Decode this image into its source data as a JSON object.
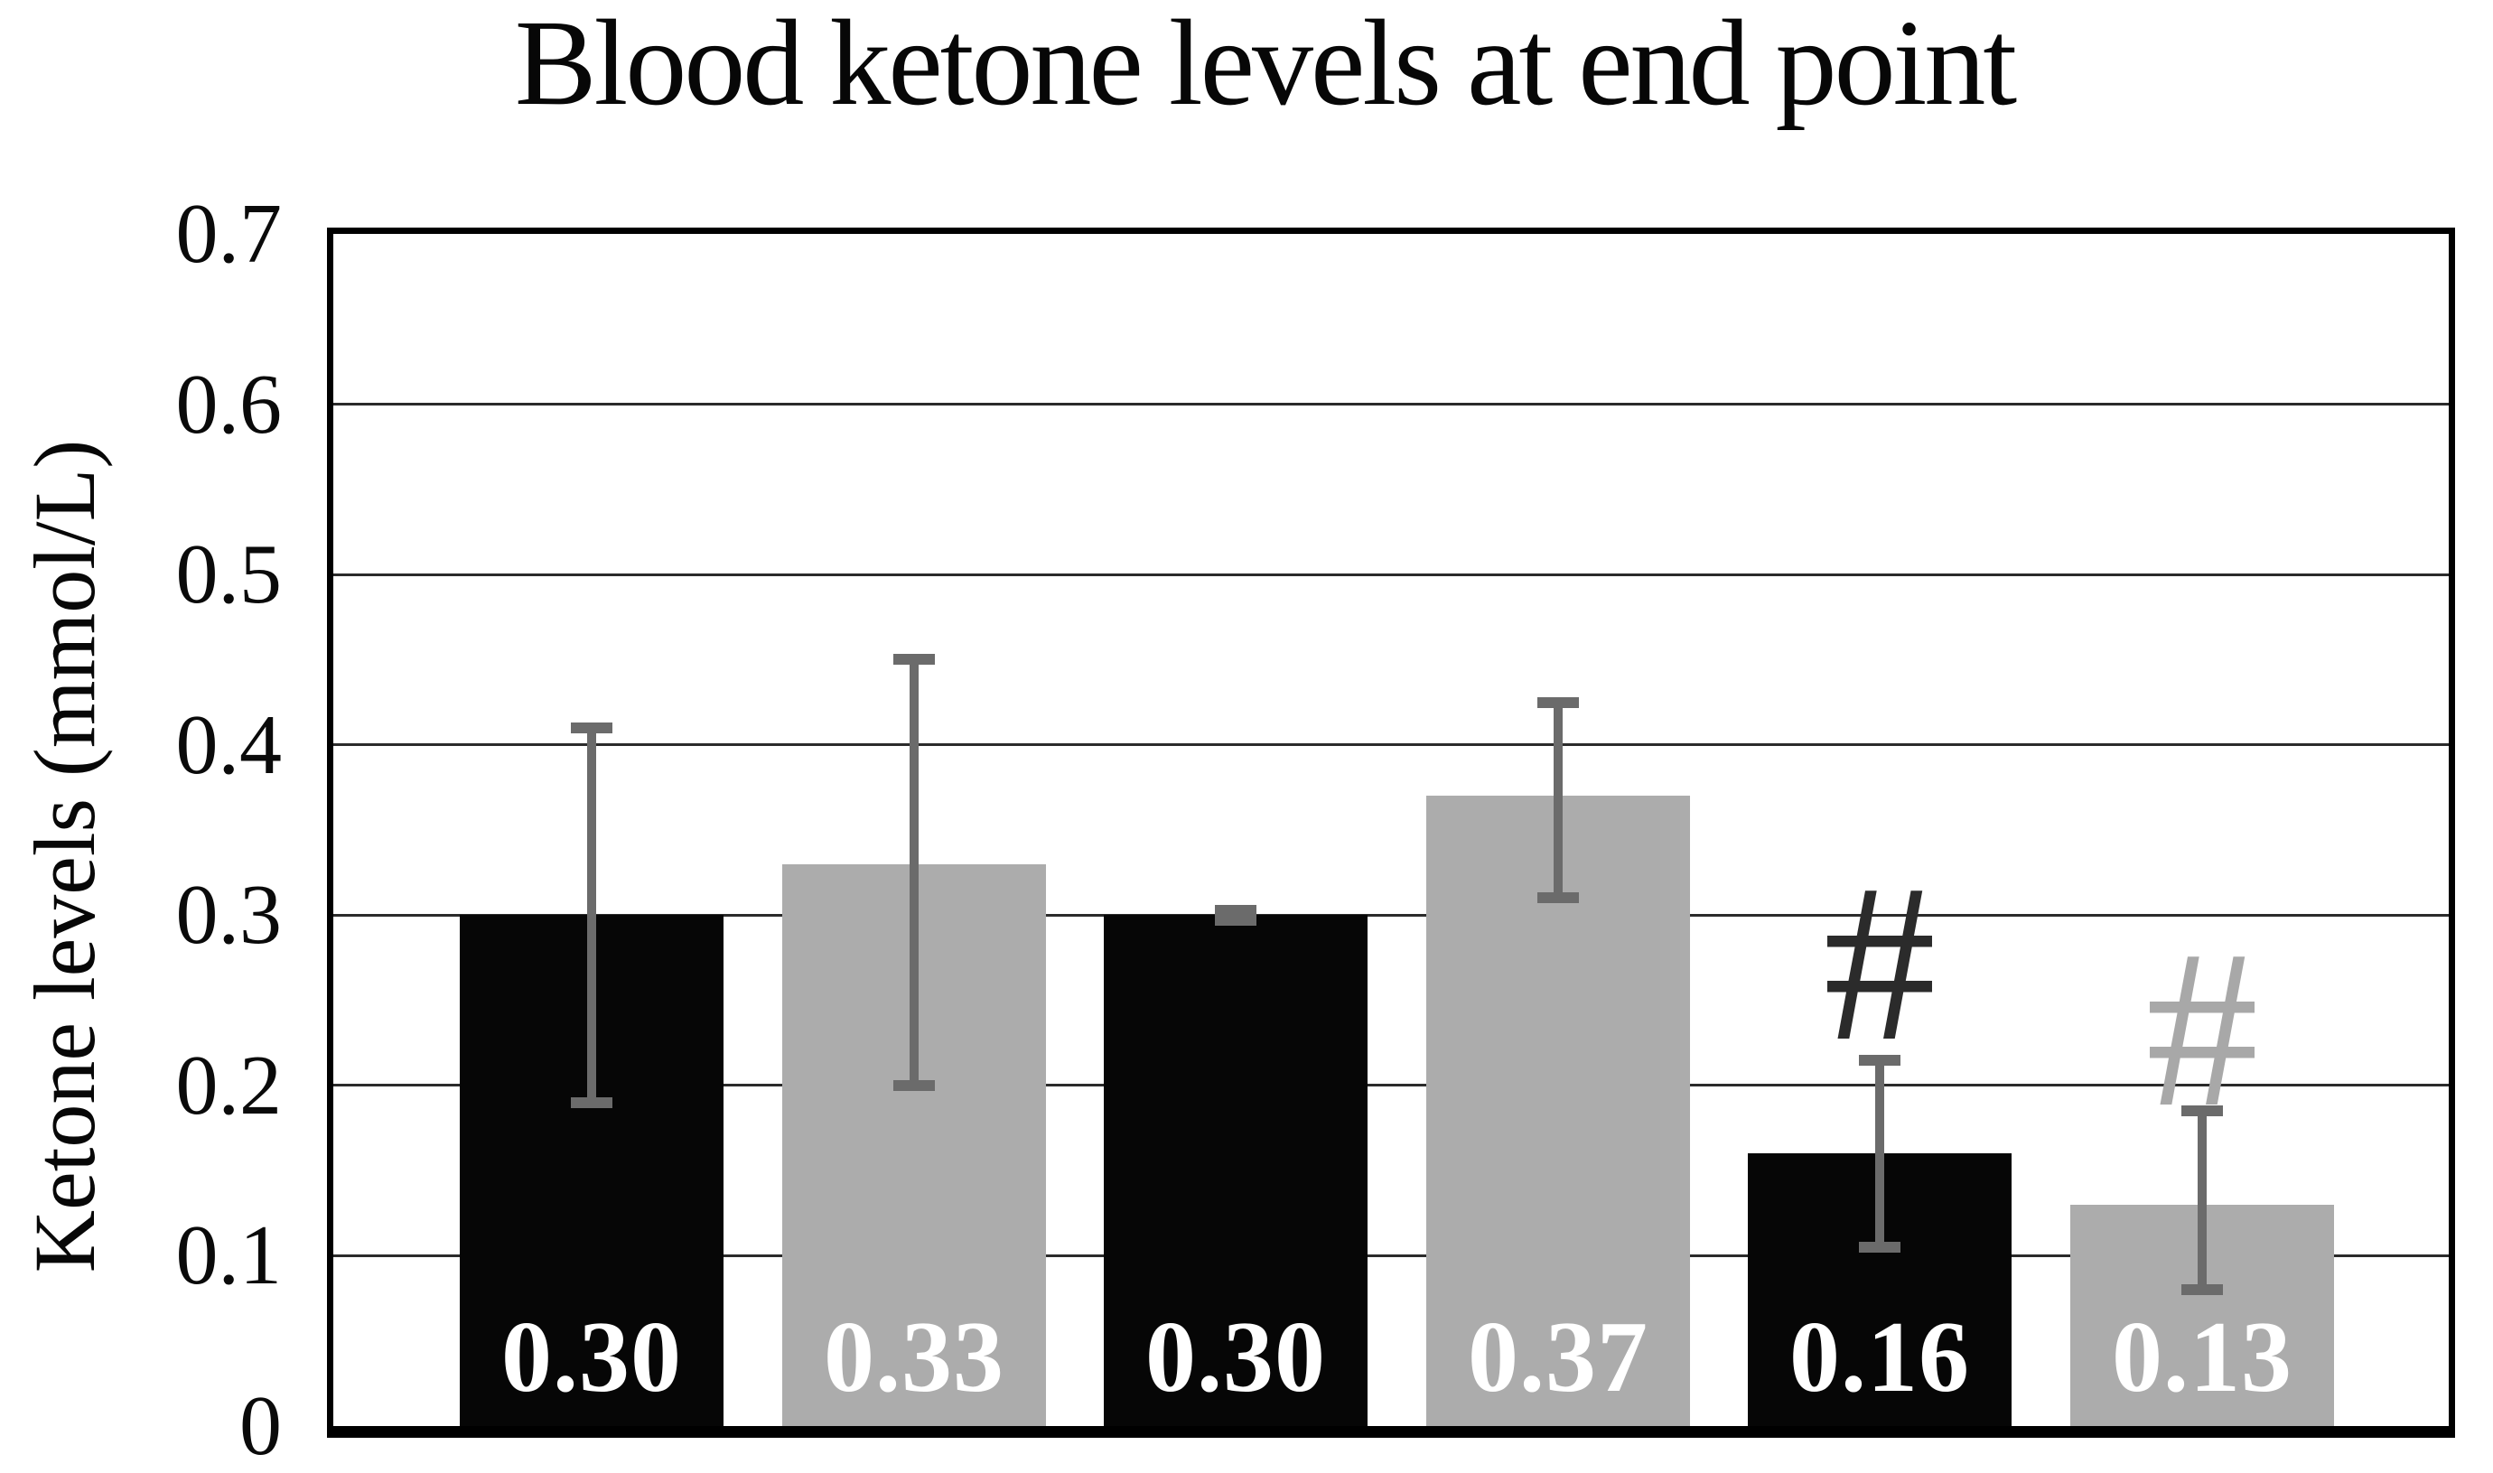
{
  "chart_data": {
    "type": "bar",
    "title": "Blood ketone levels at end point",
    "xlabel": "",
    "ylabel": "Ketone levels (mmol/L)",
    "ylim": [
      0,
      0.7
    ],
    "ytick_step": 0.1,
    "yticks": [
      "0.7",
      "0.6",
      "0.5",
      "0.4",
      "0.3",
      "0.2",
      "0.1",
      "0"
    ],
    "ytick_values": [
      0.7,
      0.6,
      0.5,
      0.4,
      0.3,
      0.2,
      0.1,
      0
    ],
    "grid": true,
    "legend": false,
    "x_tick_labels_visible": false,
    "bars": [
      {
        "label": "0.30",
        "value": 0.3,
        "fill": "black",
        "err_high": 0.41,
        "err_low": 0.19,
        "annotation": ""
      },
      {
        "label": "0.33",
        "value": 0.33,
        "fill": "gray",
        "err_high": 0.45,
        "err_low": 0.2,
        "annotation": ""
      },
      {
        "label": "0.30",
        "value": 0.3,
        "fill": "black",
        "err_high": 0.303,
        "err_low": 0.297,
        "annotation": ""
      },
      {
        "label": "0.37",
        "value": 0.37,
        "fill": "gray",
        "err_high": 0.425,
        "err_low": 0.31,
        "annotation": ""
      },
      {
        "label": "0.16",
        "value": 0.16,
        "fill": "black",
        "err_high": 0.215,
        "err_low": 0.105,
        "annotation": "#",
        "annotation_tone": "dark",
        "annotation_center_value": 0.2635
      },
      {
        "label": "0.13",
        "value": 0.13,
        "fill": "gray",
        "err_high": 0.185,
        "err_low": 0.08,
        "annotation": "#",
        "annotation_tone": "gray",
        "annotation_center_value": 0.225
      }
    ],
    "colors": {
      "bar_black": "#060606",
      "bar_gray": "#acacac",
      "error_bar": "#6b6b6b",
      "gridline": "#2b2b2b",
      "annotation_dark": "#2b2b2b",
      "annotation_gray": "#a8a8a8",
      "value_label": "#ffffff"
    }
  }
}
